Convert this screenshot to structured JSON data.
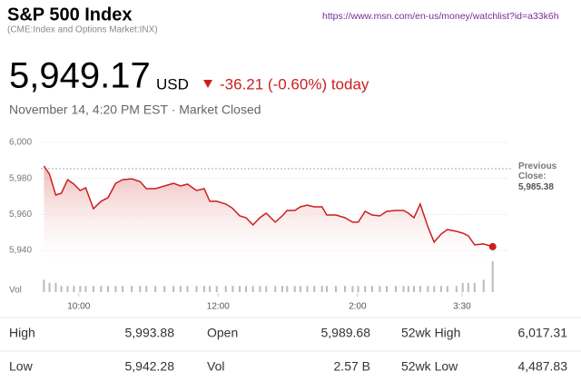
{
  "header": {
    "title": "S&P 500 Index",
    "subtitle": "(CME:Index and Options Market:INX)",
    "url": "https://www.msn.com/en-us/money/watchlist?id=a33k6h",
    "price": "5,949.17",
    "currency": "USD",
    "change": "-36.21 (-0.60%) today",
    "timestamp": "November 14, 4:20 PM EST · Market Closed"
  },
  "chart_data": {
    "type": "line",
    "color": "#cc1f1f",
    "x": [
      9.5,
      9.58,
      9.67,
      9.75,
      9.84,
      9.93,
      10.02,
      10.1,
      10.21,
      10.32,
      10.42,
      10.53,
      10.63,
      10.76,
      10.88,
      10.97,
      11.1,
      11.23,
      11.36,
      11.46,
      11.56,
      11.69,
      11.8,
      11.88,
      11.98,
      12.11,
      12.21,
      12.31,
      12.4,
      12.5,
      12.6,
      12.69,
      12.82,
      12.92,
      12.99,
      13.1,
      13.18,
      13.28,
      13.38,
      13.49,
      13.56,
      13.69,
      13.82,
      13.93,
      14.01,
      14.11,
      14.21,
      14.32,
      14.42,
      14.55,
      14.66,
      14.73,
      14.81,
      14.9,
      15.01,
      15.1,
      15.2,
      15.29,
      15.42,
      15.51,
      15.59,
      15.68,
      15.81,
      15.94
    ],
    "values": [
      5986.9,
      5982.4,
      5970.8,
      5971.8,
      5979.3,
      5976.8,
      5973.3,
      5974.8,
      5963.2,
      5967.3,
      5969.3,
      5977.3,
      5979.3,
      5979.8,
      5978.3,
      5974.3,
      5974.3,
      5975.8,
      5977.3,
      5975.8,
      5976.8,
      5973.3,
      5974.3,
      5967.3,
      5967.3,
      5965.8,
      5963.3,
      5959.2,
      5958.2,
      5954.2,
      5958.2,
      5960.7,
      5955.7,
      5959.2,
      5962.2,
      5962.2,
      5964.2,
      5965.2,
      5964.2,
      5964.2,
      5959.7,
      5959.7,
      5958.2,
      5955.7,
      5955.7,
      5961.7,
      5959.7,
      5959.2,
      5961.7,
      5962.2,
      5962.2,
      5960.7,
      5958.2,
      5965.8,
      5953.2,
      5944.6,
      5949.1,
      5951.6,
      5950.6,
      5949.6,
      5948.1,
      5943.1,
      5943.6,
      5942.1
    ],
    "xlim": [
      9,
      16.1
    ],
    "xticks": [
      {
        "value": 10,
        "label": "10:00"
      },
      {
        "value": 12,
        "label": "12:00"
      },
      {
        "value": 14,
        "label": "2:00"
      },
      {
        "value": 15.5,
        "label": "3:30"
      }
    ],
    "ylim": [
      5935,
      6000
    ],
    "yticks": [
      {
        "value": 6000,
        "label": "6,000"
      },
      {
        "value": 5980,
        "label": "5,980"
      },
      {
        "value": 5960,
        "label": "5,960"
      },
      {
        "value": 5940,
        "label": "5,940"
      }
    ],
    "grid": true,
    "previous_close": {
      "label": "Previous Close:",
      "value": 5985.38,
      "value_label": "5,985.38"
    },
    "volume": {
      "label": "Vol",
      "color": "#bbbbbb",
      "ylim": [
        0,
        10
      ],
      "values": [
        4,
        3,
        3,
        2,
        2,
        2,
        2,
        2,
        2,
        2,
        2,
        2,
        2,
        2,
        2,
        2,
        2,
        2,
        2,
        2,
        2,
        2,
        2,
        2,
        2,
        2,
        2,
        2,
        2,
        2,
        2,
        2,
        2,
        2,
        2,
        2,
        2,
        2,
        2,
        2,
        2,
        2,
        2,
        2,
        2,
        2,
        2,
        2,
        2,
        2,
        2,
        2,
        2,
        2,
        2,
        2,
        2,
        2,
        2,
        3,
        3,
        3,
        4,
        10
      ]
    }
  },
  "stats": [
    [
      {
        "label": "High",
        "value": "5,993.88"
      },
      {
        "label": "Open",
        "value": "5,989.68"
      },
      {
        "label": "52wk High",
        "value": "6,017.31"
      }
    ],
    [
      {
        "label": "Low",
        "value": "5,942.28"
      },
      {
        "label": "Vol",
        "value": "2.57 B"
      },
      {
        "label": "52wk Low",
        "value": "4,487.83"
      }
    ]
  ]
}
